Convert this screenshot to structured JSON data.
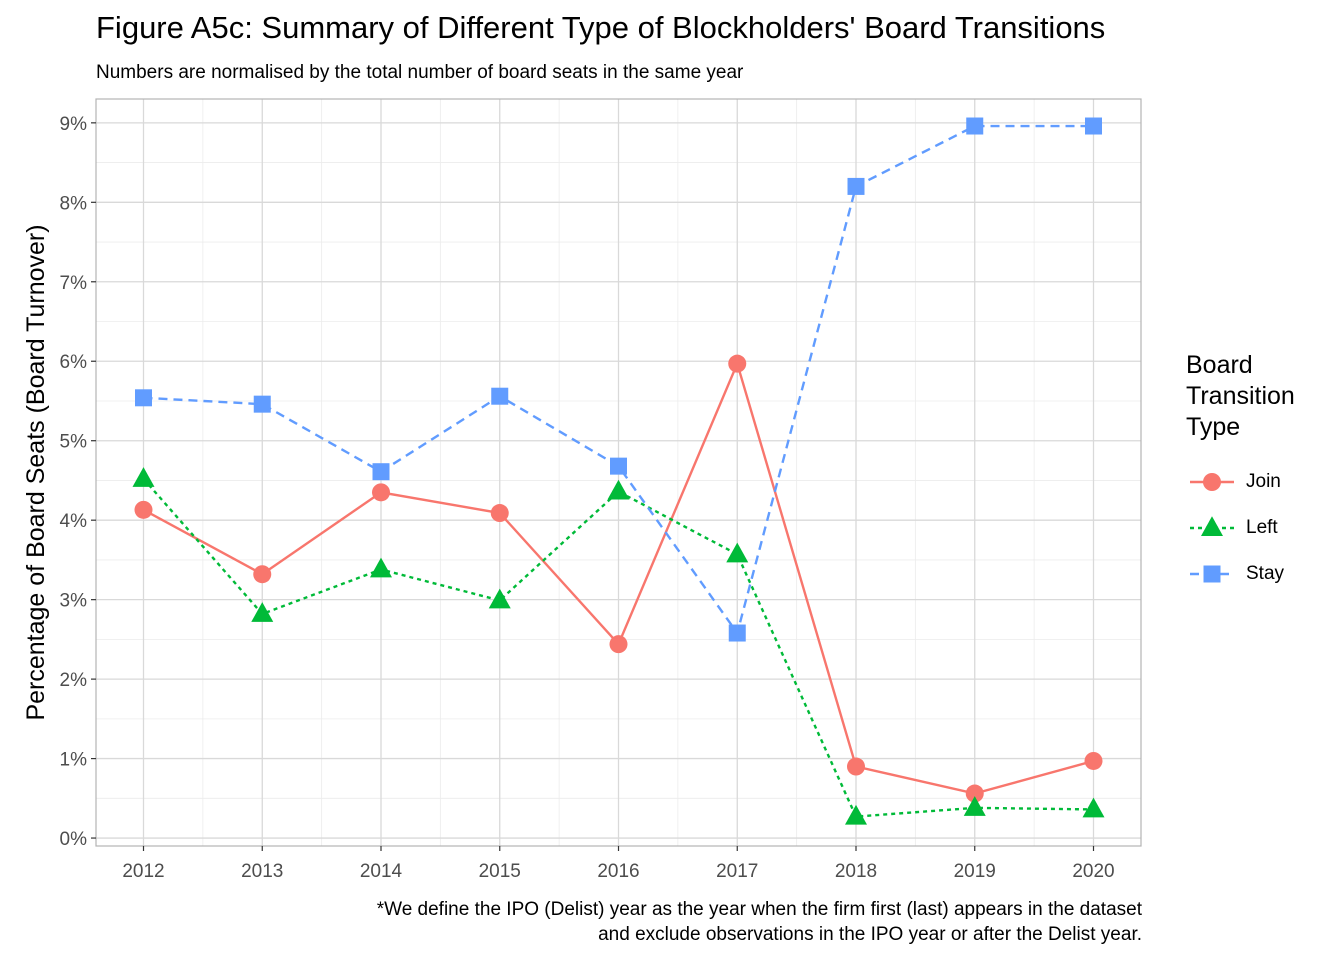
{
  "header": {
    "title": "Figure A5c: Summary of Different Type of Blockholders' Board Transitions",
    "subtitle": "Numbers are normalised by the total number of board seats in the same year"
  },
  "caption": {
    "line1": "*We define the IPO (Delist) year as the year when the firm first (last) appears in the dataset",
    "line2": "and exclude observations in the IPO year or after the Delist year."
  },
  "legend": {
    "title_lines": [
      "Board",
      "Transition",
      "Type"
    ],
    "items": [
      {
        "label": "Join",
        "color": "#F8766D",
        "shape": "circle",
        "dash": "solid"
      },
      {
        "label": "Left",
        "color": "#00BA38",
        "shape": "triangle",
        "dash": "dotted"
      },
      {
        "label": "Stay",
        "color": "#619CFF",
        "shape": "square",
        "dash": "dashed"
      }
    ]
  },
  "chart_data": {
    "type": "line",
    "title": "Figure A5c: Summary of Different Type of Blockholders' Board Transitions",
    "subtitle": "Numbers are normalised by the total number of board seats in the same year",
    "xlabel": "",
    "ylabel": "Percentage of Board Seats (Board Turnover)",
    "x": [
      2012,
      2013,
      2014,
      2015,
      2016,
      2017,
      2018,
      2019,
      2020
    ],
    "x_tick_labels": [
      "2012",
      "2013",
      "2014",
      "2015",
      "2016",
      "2017",
      "2018",
      "2019",
      "2020"
    ],
    "ylim": [
      -0.1,
      9.3
    ],
    "y_ticks": [
      0,
      1,
      2,
      3,
      4,
      5,
      6,
      7,
      8,
      9
    ],
    "y_tick_labels": [
      "0%",
      "1%",
      "2%",
      "3%",
      "4%",
      "5%",
      "6%",
      "7%",
      "8%",
      "9%"
    ],
    "grid": true,
    "legend_position": "right",
    "series": [
      {
        "name": "Join",
        "color": "#F8766D",
        "marker": "circle",
        "line": "solid",
        "values": [
          4.13,
          3.32,
          4.35,
          4.09,
          2.44,
          5.97,
          0.9,
          0.56,
          0.97
        ]
      },
      {
        "name": "Left",
        "color": "#00BA38",
        "marker": "triangle",
        "line": "dotted",
        "values": [
          4.52,
          2.82,
          3.38,
          2.99,
          4.36,
          3.57,
          0.27,
          0.38,
          0.36
        ]
      },
      {
        "name": "Stay",
        "color": "#619CFF",
        "marker": "square",
        "line": "dashed",
        "values": [
          5.54,
          5.46,
          4.61,
          5.56,
          4.68,
          2.58,
          8.2,
          8.96,
          8.96
        ]
      }
    ]
  }
}
